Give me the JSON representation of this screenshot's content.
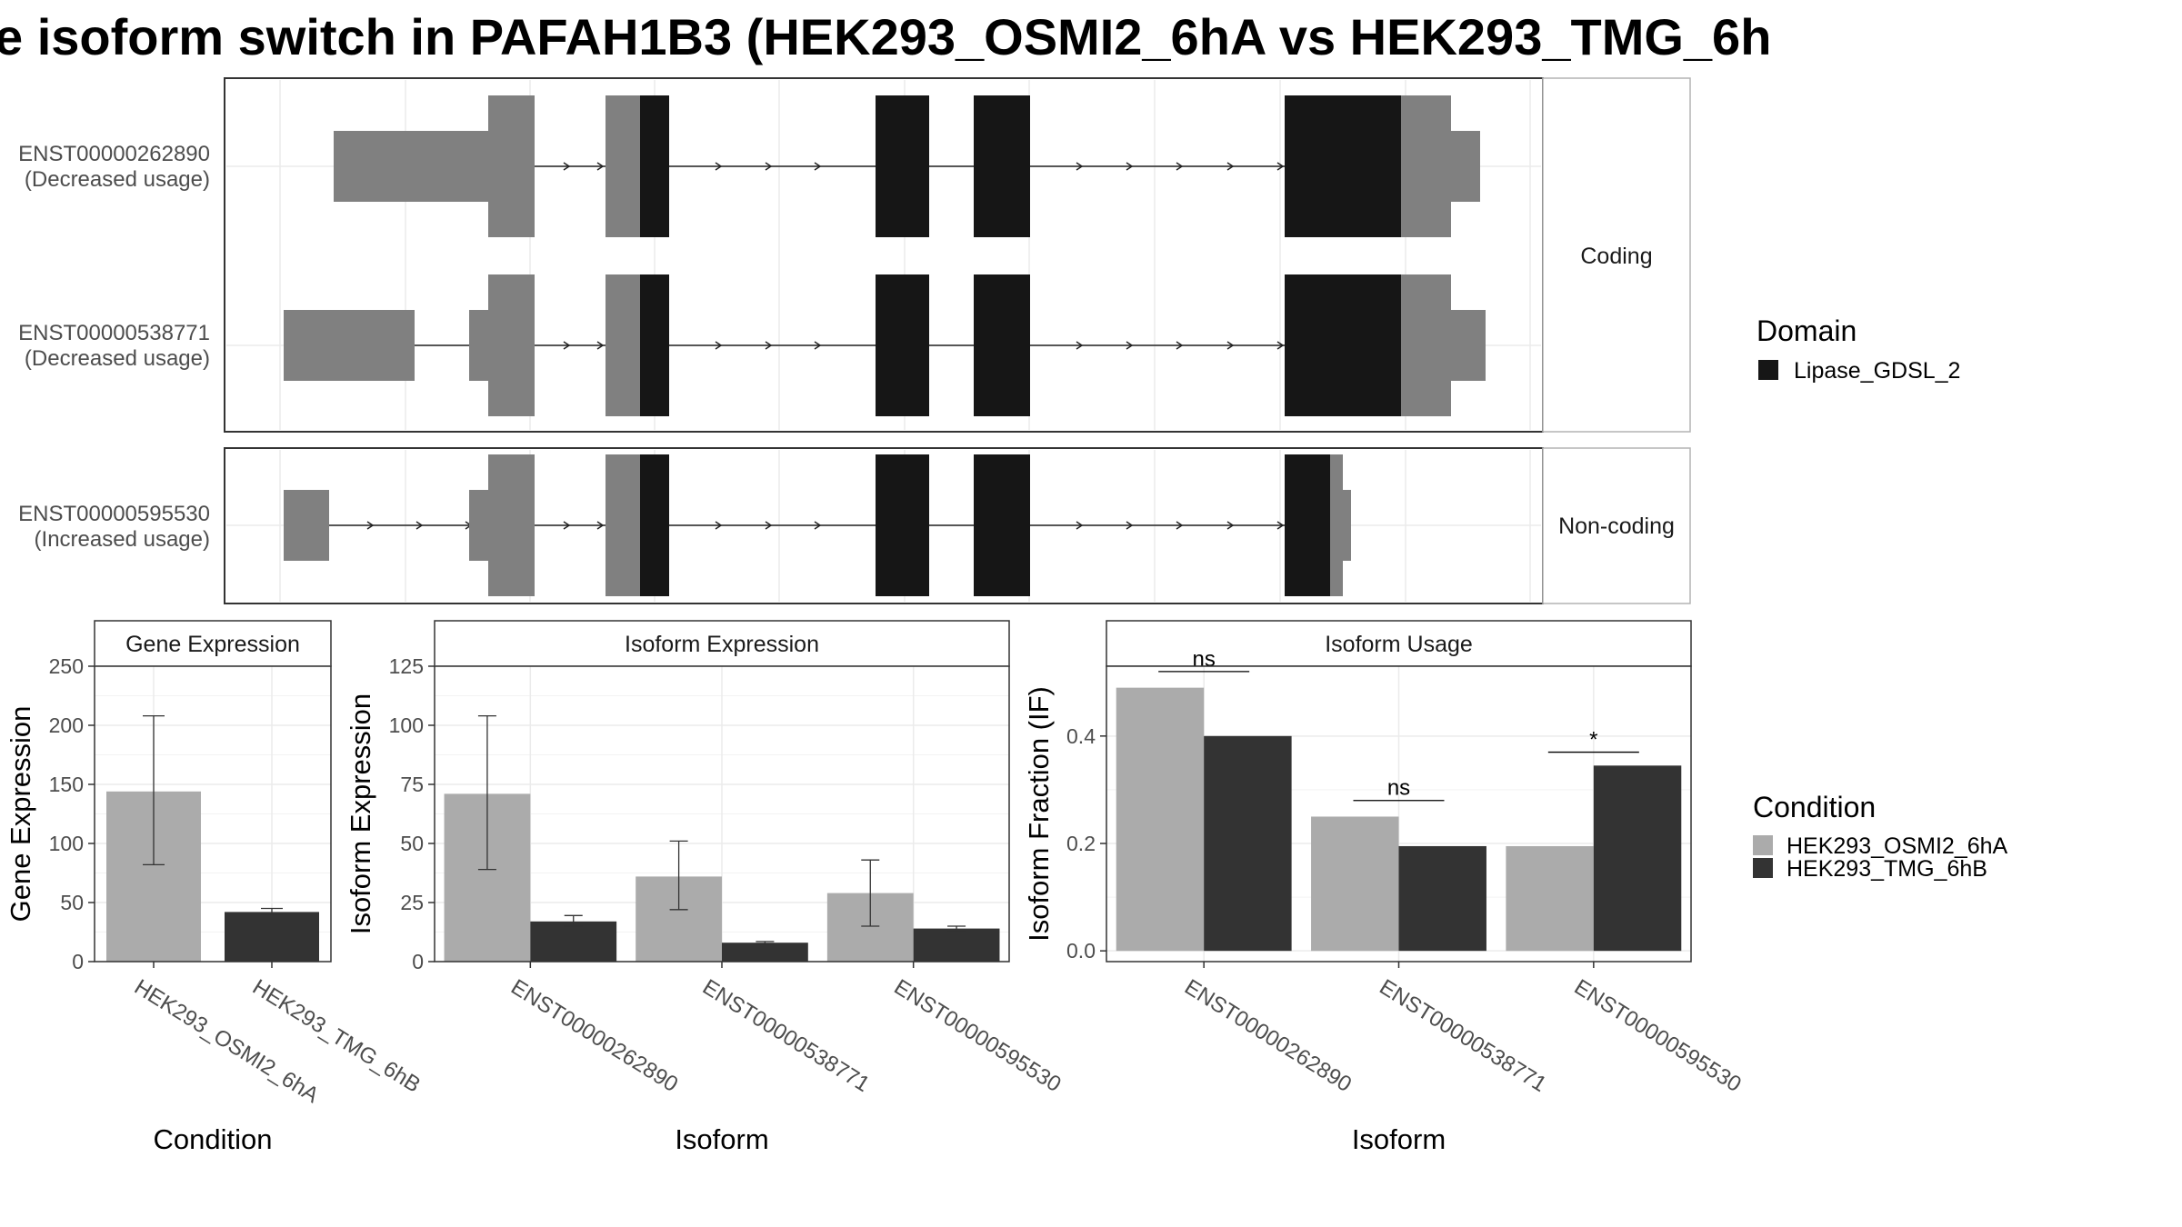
{
  "title": "e isoform switch in PAFAH1B3 (HEK293_OSMI2_6hA vs HEK293_TMG_6h",
  "colors": {
    "utr": "#808080",
    "domain": "#161616",
    "cond_a": "#ababab",
    "cond_b": "#333333",
    "grid": "#ebebeb",
    "frame": "#333333",
    "strip_bg": "#ffffff"
  },
  "transcripts": {
    "coding_panel_label": "Coding",
    "noncoding_panel_label": "Non-coding",
    "rows": [
      {
        "id": "ENST00000262890",
        "usage": "(Decreased usage)"
      },
      {
        "id": "ENST00000538771",
        "usage": "(Decreased usage)"
      },
      {
        "id": "ENST00000595530",
        "usage": "(Increased usage)"
      }
    ]
  },
  "legend_domain": {
    "title": "Domain",
    "items": [
      "Lipase_GDSL_2"
    ]
  },
  "legend_condition": {
    "title": "Condition",
    "items": [
      "HEK293_OSMI2_6hA",
      "HEK293_TMG_6hB"
    ]
  },
  "chart_data": [
    {
      "type": "bar",
      "title": "Gene Expression",
      "xlabel": "Condition",
      "ylabel": "Gene Expression",
      "ylim": [
        0,
        250
      ],
      "yticks": [
        0,
        50,
        100,
        150,
        200,
        250
      ],
      "categories": [
        "HEK293_OSMI2_6hA",
        "HEK293_TMG_6hB"
      ],
      "values": [
        144,
        42
      ],
      "err_low": [
        82,
        39
      ],
      "err_high": [
        208,
        45
      ]
    },
    {
      "type": "bar",
      "title": "Isoform Expression",
      "xlabel": "Isoform",
      "ylabel": "Isoform Expression",
      "ylim": [
        0,
        125
      ],
      "yticks": [
        0,
        25,
        50,
        75,
        100,
        125
      ],
      "categories": [
        "ENST00000262890",
        "ENST00000538771",
        "ENST00000595530"
      ],
      "series": [
        {
          "name": "HEK293_OSMI2_6hA",
          "values": [
            71,
            36,
            29
          ],
          "err_low": [
            39,
            22,
            15
          ],
          "err_high": [
            104,
            51,
            43
          ]
        },
        {
          "name": "HEK293_TMG_6hB",
          "values": [
            17,
            8,
            14
          ],
          "err_low": [
            15,
            7.5,
            13
          ],
          "err_high": [
            19.5,
            8.5,
            15
          ]
        }
      ]
    },
    {
      "type": "bar",
      "title": "Isoform Usage",
      "xlabel": "Isoform",
      "ylabel": "Isoform Fraction (IF)",
      "ylim": [
        -0.02,
        0.53
      ],
      "yticks": [
        0.0,
        0.2,
        0.4
      ],
      "ytick_labels": [
        "0.0",
        "0.2",
        "0.4"
      ],
      "categories": [
        "ENST00000262890",
        "ENST00000538771",
        "ENST00000595530"
      ],
      "series": [
        {
          "name": "HEK293_OSMI2_6hA",
          "values": [
            0.49,
            0.25,
            0.195
          ]
        },
        {
          "name": "HEK293_TMG_6hB",
          "values": [
            0.4,
            0.195,
            0.345
          ]
        }
      ],
      "significance": [
        "ns",
        "ns",
        "*"
      ],
      "sig_level": [
        0.52,
        0.28,
        0.37
      ]
    }
  ]
}
